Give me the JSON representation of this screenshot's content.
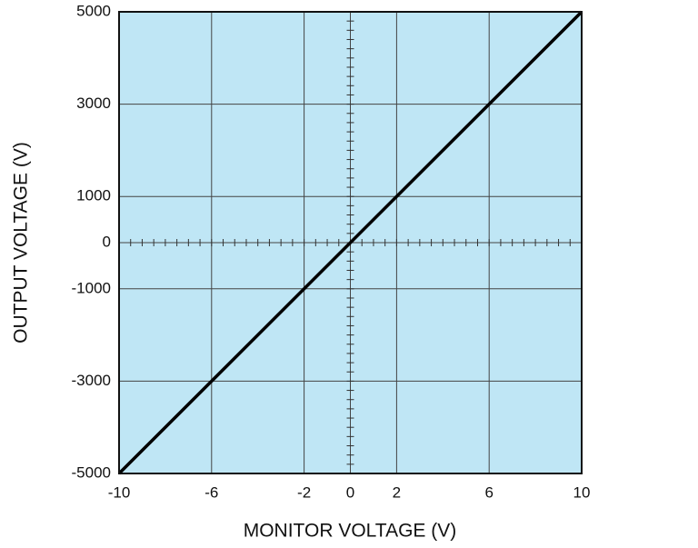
{
  "chart_data": {
    "type": "line",
    "x": [
      -10,
      10
    ],
    "values": [
      -5000,
      5000
    ],
    "color": "#000000",
    "xlabel": "MONITOR VOLTAGE (V)",
    "ylabel": "OUTPUT VOLTAGE (V)",
    "xlim": [
      -10,
      10
    ],
    "xticks": [
      -10,
      -6,
      -2,
      0,
      2,
      6,
      10
    ],
    "ylim": [
      -5000,
      5000
    ],
    "yticks": [
      -5000,
      -3000,
      -1000,
      0,
      1000,
      3000,
      5000
    ],
    "grid": true,
    "background": "#bfe6f5"
  }
}
